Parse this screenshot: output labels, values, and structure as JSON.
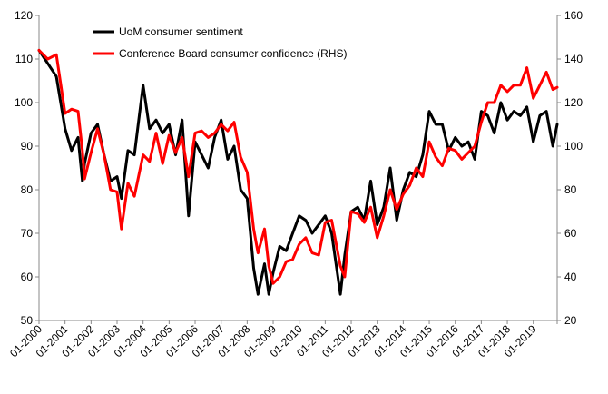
{
  "chart_data": {
    "type": "line",
    "title": "",
    "xlabel": "",
    "ylabel": "",
    "x_tick_labels": [
      "01-2000",
      "01-2001",
      "01-2002",
      "01-2003",
      "01-2004",
      "01-2005",
      "01-2006",
      "01-2007",
      "01-2008",
      "01-2009",
      "01-2010",
      "01-2011",
      "01-2012",
      "01-2013",
      "01-2014",
      "01-2015",
      "01-2016",
      "01-2017",
      "01-2018",
      "01-2019"
    ],
    "x_range": [
      "2000-01",
      "2019-12"
    ],
    "y_left": {
      "range": [
        50,
        120
      ],
      "ticks": [
        "50",
        "60",
        "70",
        "80",
        "90",
        "100",
        "110",
        "120"
      ]
    },
    "y_right": {
      "range": [
        20,
        160
      ],
      "ticks": [
        "20",
        "40",
        "60",
        "80",
        "100",
        "120",
        "140",
        "160"
      ]
    },
    "grid": false,
    "legend_position": "top-left",
    "series": [
      {
        "name": "UoM consumer sentiment",
        "axis": "left",
        "color": "#000000",
        "x": [
          "2000-01",
          "2000-05",
          "2000-09",
          "2001-01",
          "2001-04",
          "2001-07",
          "2001-09",
          "2001-10",
          "2002-01",
          "2002-04",
          "2002-07",
          "2002-10",
          "2003-01",
          "2003-03",
          "2003-06",
          "2003-09",
          "2004-01",
          "2004-04",
          "2004-07",
          "2004-10",
          "2005-01",
          "2005-04",
          "2005-07",
          "2005-10",
          "2006-01",
          "2006-04",
          "2006-07",
          "2006-10",
          "2007-01",
          "2007-04",
          "2007-07",
          "2007-10",
          "2008-01",
          "2008-04",
          "2008-06",
          "2008-09",
          "2008-11",
          "2009-01",
          "2009-04",
          "2009-07",
          "2009-10",
          "2010-01",
          "2010-04",
          "2010-07",
          "2010-10",
          "2011-01",
          "2011-04",
          "2011-08",
          "2011-10",
          "2012-01",
          "2012-04",
          "2012-07",
          "2012-10",
          "2013-01",
          "2013-04",
          "2013-07",
          "2013-10",
          "2014-01",
          "2014-04",
          "2014-07",
          "2014-10",
          "2015-01",
          "2015-04",
          "2015-07",
          "2015-10",
          "2016-01",
          "2016-04",
          "2016-07",
          "2016-10",
          "2017-01",
          "2017-04",
          "2017-07",
          "2017-10",
          "2018-01",
          "2018-04",
          "2018-07",
          "2018-10",
          "2019-01",
          "2019-04",
          "2019-07",
          "2019-10",
          "2019-12"
        ],
        "values": [
          112,
          109,
          106,
          94,
          89,
          92,
          82,
          86,
          93,
          95,
          88,
          82,
          83,
          78,
          89,
          88,
          104,
          94,
          96,
          93,
          95,
          88,
          96,
          74,
          91,
          88,
          85,
          92,
          96,
          87,
          90,
          80,
          78,
          62,
          56,
          63,
          56,
          61,
          67,
          66,
          70,
          74,
          73,
          70,
          72,
          74,
          70,
          56,
          65,
          75,
          76,
          73,
          82,
          72,
          76,
          85,
          73,
          80,
          84,
          83,
          88,
          98,
          95,
          95,
          89,
          92,
          90,
          91,
          87,
          98,
          97,
          93,
          100,
          96,
          98,
          97,
          99,
          91,
          97,
          98,
          90,
          95
        ]
      },
      {
        "name": "Conference Board consumer confidence (RHS)",
        "axis": "right",
        "color": "#ff0000",
        "x": [
          "2000-01",
          "2000-05",
          "2000-09",
          "2001-01",
          "2001-04",
          "2001-07",
          "2001-09",
          "2001-10",
          "2002-01",
          "2002-04",
          "2002-07",
          "2002-10",
          "2003-01",
          "2003-03",
          "2003-06",
          "2003-09",
          "2004-01",
          "2004-04",
          "2004-07",
          "2004-10",
          "2005-01",
          "2005-04",
          "2005-07",
          "2005-10",
          "2006-01",
          "2006-04",
          "2006-07",
          "2006-10",
          "2007-01",
          "2007-04",
          "2007-07",
          "2007-10",
          "2008-01",
          "2008-04",
          "2008-06",
          "2008-09",
          "2008-11",
          "2009-01",
          "2009-04",
          "2009-07",
          "2009-10",
          "2010-01",
          "2010-04",
          "2010-07",
          "2010-10",
          "2011-01",
          "2011-04",
          "2011-08",
          "2011-10",
          "2012-01",
          "2012-04",
          "2012-07",
          "2012-10",
          "2013-01",
          "2013-04",
          "2013-07",
          "2013-10",
          "2014-01",
          "2014-04",
          "2014-07",
          "2014-10",
          "2015-01",
          "2015-04",
          "2015-07",
          "2015-10",
          "2016-01",
          "2016-04",
          "2016-07",
          "2016-10",
          "2017-01",
          "2017-04",
          "2017-07",
          "2017-10",
          "2018-01",
          "2018-04",
          "2018-07",
          "2018-10",
          "2019-01",
          "2019-04",
          "2019-07",
          "2019-10",
          "2019-12"
        ],
        "values": [
          144,
          140,
          142,
          115,
          117,
          116,
          98,
          85,
          97,
          108,
          96,
          80,
          79,
          62,
          83,
          77,
          96,
          93,
          106,
          92,
          105,
          97,
          104,
          86,
          106,
          107,
          104,
          106,
          110,
          107,
          111,
          95,
          88,
          62,
          51,
          62,
          45,
          37,
          40,
          47,
          48,
          55,
          58,
          51,
          50,
          65,
          66,
          45,
          40,
          70,
          69,
          65,
          72,
          58,
          68,
          80,
          71,
          78,
          82,
          90,
          86,
          102,
          95,
          91,
          99,
          98,
          94,
          97,
          100,
          111,
          120,
          120,
          128,
          125,
          128,
          128,
          136,
          122,
          128,
          134,
          126,
          127
        ]
      }
    ]
  }
}
